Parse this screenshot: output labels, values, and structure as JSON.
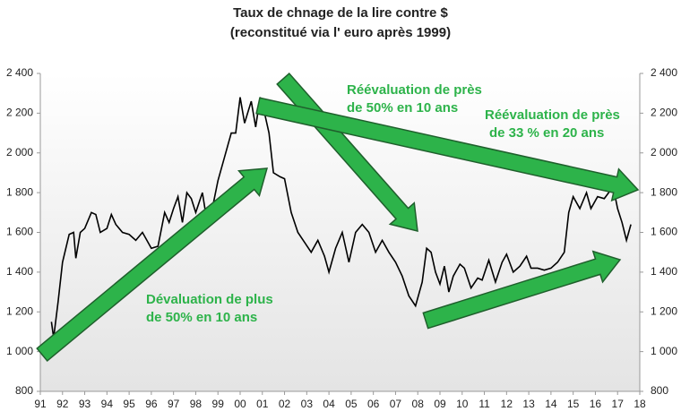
{
  "chart_data": {
    "type": "line",
    "title": [
      "Taux de chnage de la lire contre $",
      "(reconstitué via l' euro après 1999)"
    ],
    "x": [
      1991.5,
      1991.6,
      1991.8,
      1992.0,
      1992.3,
      1992.5,
      1992.6,
      1992.8,
      1993.0,
      1993.3,
      1993.5,
      1993.7,
      1994.0,
      1994.2,
      1994.4,
      1994.7,
      1995.0,
      1995.3,
      1995.6,
      1995.8,
      1996.0,
      1996.3,
      1996.6,
      1996.8,
      1997.0,
      1997.2,
      1997.4,
      1997.6,
      1997.8,
      1998.0,
      1998.3,
      1998.5,
      1998.8,
      1999.0,
      1999.3,
      1999.6,
      1999.8,
      2000.0,
      2000.2,
      2000.5,
      2000.7,
      2000.9,
      2001.1,
      2001.3,
      2001.5,
      2001.8,
      2002.0,
      2002.3,
      2002.6,
      2002.9,
      2003.2,
      2003.5,
      2003.8,
      2004.0,
      2004.3,
      2004.6,
      2004.9,
      2005.2,
      2005.5,
      2005.8,
      2006.1,
      2006.4,
      2006.7,
      2007.0,
      2007.3,
      2007.6,
      2007.9,
      2008.2,
      2008.4,
      2008.6,
      2008.8,
      2009.0,
      2009.2,
      2009.4,
      2009.6,
      2009.9,
      2010.1,
      2010.4,
      2010.7,
      2010.9,
      2011.2,
      2011.5,
      2011.8,
      2012.0,
      2012.3,
      2012.6,
      2012.9,
      2013.1,
      2013.4,
      2013.7,
      2014.0,
      2014.3,
      2014.6,
      2014.8,
      2015.0,
      2015.3,
      2015.6,
      2015.8,
      2016.1,
      2016.4,
      2016.6,
      2016.8,
      2017.0,
      2017.2,
      2017.4,
      2017.6
    ],
    "series": [
      {
        "color": "#000000",
        "values": [
          1150,
          1070,
          1250,
          1450,
          1590,
          1600,
          1470,
          1600,
          1620,
          1700,
          1690,
          1600,
          1620,
          1690,
          1640,
          1600,
          1590,
          1560,
          1600,
          1560,
          1520,
          1530,
          1700,
          1650,
          1720,
          1780,
          1650,
          1800,
          1770,
          1700,
          1800,
          1660,
          1750,
          1860,
          1980,
          2100,
          2100,
          2280,
          2150,
          2260,
          2130,
          2280,
          2200,
          2100,
          1900,
          1880,
          1870,
          1700,
          1600,
          1550,
          1500,
          1560,
          1480,
          1400,
          1520,
          1600,
          1450,
          1600,
          1640,
          1600,
          1500,
          1560,
          1500,
          1450,
          1380,
          1280,
          1230,
          1350,
          1520,
          1500,
          1400,
          1340,
          1430,
          1300,
          1380,
          1440,
          1420,
          1320,
          1370,
          1360,
          1460,
          1350,
          1450,
          1490,
          1400,
          1430,
          1480,
          1420,
          1420,
          1410,
          1420,
          1450,
          1500,
          1700,
          1780,
          1720,
          1800,
          1720,
          1780,
          1770,
          1800,
          1830,
          1720,
          1650,
          1560,
          1640
        ]
      }
    ],
    "xlim": [
      1991,
      2018
    ],
    "xticks": [
      {
        "value": 1991,
        "label": "91"
      },
      {
        "value": 1992,
        "label": "92"
      },
      {
        "value": 1993,
        "label": "93"
      },
      {
        "value": 1994,
        "label": "94"
      },
      {
        "value": 1995,
        "label": "95"
      },
      {
        "value": 1996,
        "label": "96"
      },
      {
        "value": 1997,
        "label": "97"
      },
      {
        "value": 1998,
        "label": "98"
      },
      {
        "value": 1999,
        "label": "99"
      },
      {
        "value": 2000,
        "label": "00"
      },
      {
        "value": 2001,
        "label": "01"
      },
      {
        "value": 2002,
        "label": "02"
      },
      {
        "value": 2003,
        "label": "03"
      },
      {
        "value": 2004,
        "label": "04"
      },
      {
        "value": 2005,
        "label": "05"
      },
      {
        "value": 2006,
        "label": "06"
      },
      {
        "value": 2007,
        "label": "07"
      },
      {
        "value": 2008,
        "label": "08"
      },
      {
        "value": 2009,
        "label": "09"
      },
      {
        "value": 2010,
        "label": "10"
      },
      {
        "value": 2011,
        "label": "11"
      },
      {
        "value": 2012,
        "label": "12"
      },
      {
        "value": 2013,
        "label": "13"
      },
      {
        "value": 2014,
        "label": "14"
      },
      {
        "value": 2015,
        "label": "15"
      },
      {
        "value": 2016,
        "label": "16"
      },
      {
        "value": 2017,
        "label": "17"
      },
      {
        "value": 2018,
        "label": "18"
      }
    ],
    "ylim": [
      800,
      2400
    ],
    "yticks": [
      {
        "value": 800,
        "label": "800"
      },
      {
        "value": 1000,
        "label": "1 000"
      },
      {
        "value": 1200,
        "label": "1 200"
      },
      {
        "value": 1400,
        "label": "1 400"
      },
      {
        "value": 1600,
        "label": "1 600"
      },
      {
        "value": 1800,
        "label": "1 800"
      },
      {
        "value": 2000,
        "label": "2 000"
      },
      {
        "value": 2200,
        "label": "2 200"
      },
      {
        "value": 2400,
        "label": "2 400"
      }
    ],
    "y2lim": [
      800,
      2400
    ],
    "y2ticks": [
      {
        "value": 800,
        "label": "800"
      },
      {
        "value": 1000,
        "label": "1 000"
      },
      {
        "value": 1200,
        "label": "1 200"
      },
      {
        "value": 1400,
        "label": "1 400"
      },
      {
        "value": 1600,
        "label": "1 600"
      },
      {
        "value": 1800,
        "label": "1 800"
      },
      {
        "value": 2000,
        "label": "2 000"
      },
      {
        "value": 2200,
        "label": "2 200"
      },
      {
        "value": 2400,
        "label": "2 400"
      }
    ],
    "annotations": [
      [
        "Réévaluation de près",
        "de 50% en 10 ans"
      ],
      [
        "Réévaluation de près",
        "de 33 % en 20 ans"
      ],
      [
        "Dévaluation de plus",
        "de 50% en 10 ans"
      ]
    ]
  }
}
